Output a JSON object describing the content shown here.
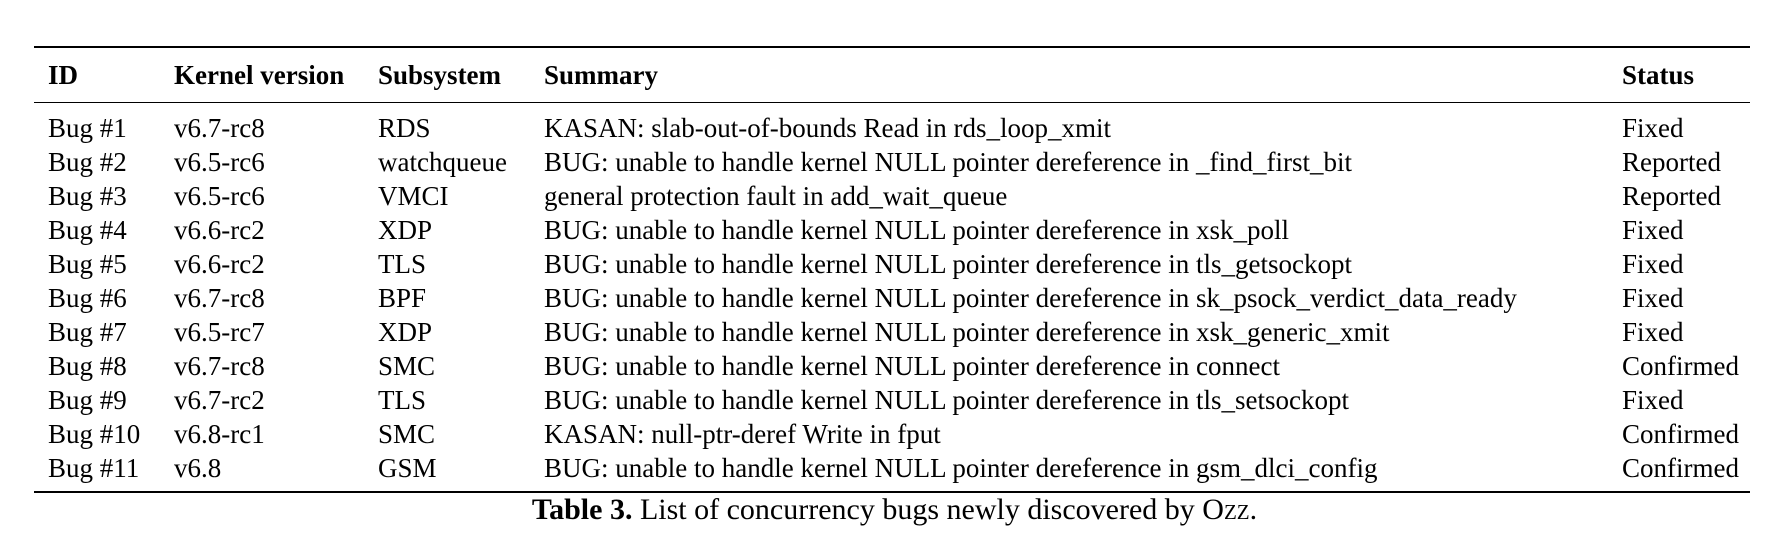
{
  "table": {
    "headers": [
      "ID",
      "Kernel version",
      "Subsystem",
      "Summary",
      "Status"
    ],
    "rows": [
      [
        "Bug #1",
        "v6.7-rc8",
        "RDS",
        "KASAN: slab-out-of-bounds Read in rds_loop_xmit",
        "Fixed"
      ],
      [
        "Bug #2",
        "v6.5-rc6",
        "watchqueue",
        "BUG: unable to handle kernel NULL pointer dereference in _find_first_bit",
        "Reported"
      ],
      [
        "Bug #3",
        "v6.5-rc6",
        "VMCI",
        "general protection fault in add_wait_queue",
        "Reported"
      ],
      [
        "Bug #4",
        "v6.6-rc2",
        "XDP",
        "BUG: unable to handle kernel NULL pointer dereference in xsk_poll",
        "Fixed"
      ],
      [
        "Bug #5",
        "v6.6-rc2",
        "TLS",
        "BUG: unable to handle kernel NULL pointer dereference in tls_getsockopt",
        "Fixed"
      ],
      [
        "Bug #6",
        "v6.7-rc8",
        "BPF",
        "BUG: unable to handle kernel NULL pointer dereference in sk_psock_verdict_data_ready",
        "Fixed"
      ],
      [
        "Bug #7",
        "v6.5-rc7",
        "XDP",
        "BUG: unable to handle kernel NULL pointer dereference in xsk_generic_xmit",
        "Fixed"
      ],
      [
        "Bug #8",
        "v6.7-rc8",
        "SMC",
        "BUG: unable to handle kernel NULL pointer dereference in connect",
        "Confirmed"
      ],
      [
        "Bug #9",
        "v6.7-rc2",
        "TLS",
        "BUG: unable to handle kernel NULL pointer dereference in tls_setsockopt",
        "Fixed"
      ],
      [
        "Bug #10",
        "v6.8-rc1",
        "SMC",
        "KASAN: null-ptr-deref Write in fput",
        "Confirmed"
      ],
      [
        "Bug #11",
        "v6.8",
        "GSM",
        "BUG: unable to handle kernel NULL pointer dereference in gsm_dlci_config",
        "Confirmed"
      ]
    ]
  },
  "caption": {
    "label": "Table 3.",
    "text": "List of concurrency bugs newly discovered by",
    "tool": "Ozz",
    "end": "."
  }
}
